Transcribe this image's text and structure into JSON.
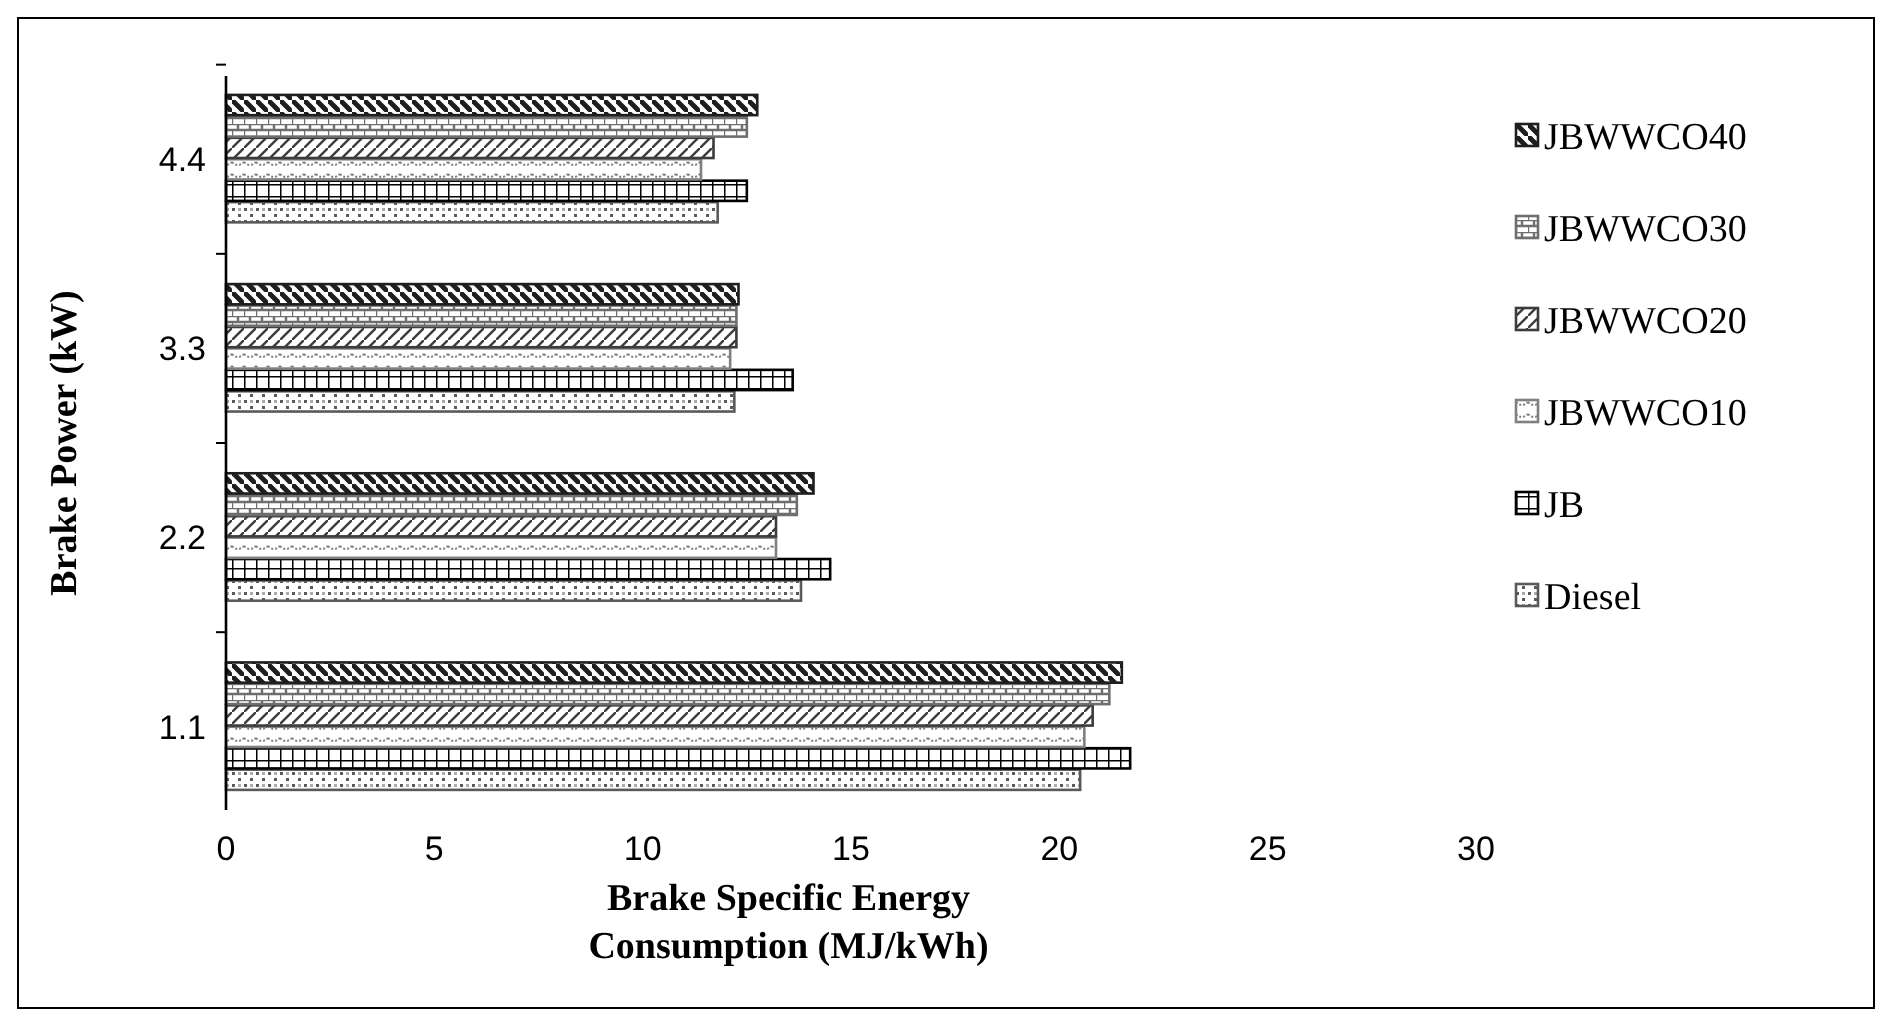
{
  "chart_data": {
    "type": "bar",
    "orientation": "horizontal",
    "xlabel": "Brake Specific Energy\nConsumption (MJ/kWh)",
    "ylabel": "Brake Power (kW)",
    "categories": [
      "4.4",
      "3.3",
      "2.2",
      "1.1"
    ],
    "xlim": [
      0,
      30
    ],
    "xticks": [
      0,
      5,
      10,
      15,
      20,
      25,
      30
    ],
    "legend": "right",
    "grid": false,
    "series": [
      {
        "name": "Diesel",
        "color": "#5a5a5a",
        "values": [
          11.8,
          12.2,
          13.8,
          20.5
        ]
      },
      {
        "name": "JB",
        "color": "#000000",
        "values": [
          12.5,
          13.6,
          14.5,
          21.7
        ]
      },
      {
        "name": "JBWWCO10",
        "color": "#808080",
        "values": [
          11.4,
          12.1,
          13.2,
          20.6
        ]
      },
      {
        "name": "JBWWCO20",
        "color": "#3c3c3c",
        "values": [
          11.7,
          12.25,
          13.2,
          20.8
        ]
      },
      {
        "name": "JBWWCO30",
        "color": "#6e6e6e",
        "values": [
          12.5,
          12.25,
          13.7,
          21.2
        ]
      },
      {
        "name": "JBWWCO40",
        "color": "#1e1e1e",
        "values": [
          12.75,
          12.3,
          14.1,
          21.5
        ]
      }
    ]
  }
}
